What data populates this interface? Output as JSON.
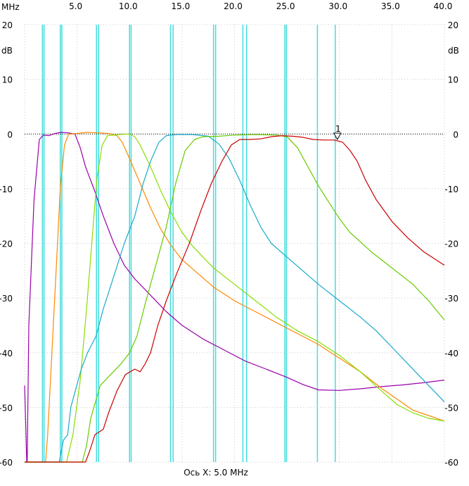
{
  "chart_data": {
    "type": "line",
    "x_unit": "MHz",
    "y_unit": "dB",
    "xlabel": "Ось X: 5.0 MHz",
    "xlim": [
      0,
      40
    ],
    "ylim": [
      -60,
      20
    ],
    "x_ticks_top": [
      {
        "value": 5,
        "label": "5.0"
      },
      {
        "value": 10,
        "label": "10.0"
      },
      {
        "value": 15,
        "label": "15.0"
      },
      {
        "value": 20,
        "label": "20.0"
      },
      {
        "value": 25,
        "label": "25.0"
      },
      {
        "value": 30,
        "label": "30.0"
      },
      {
        "value": 35,
        "label": "35.0"
      },
      {
        "value": 40,
        "label": "40.0"
      }
    ],
    "y_ticks": [
      {
        "value": 20,
        "label": "20"
      },
      {
        "value": 10,
        "label": "10"
      },
      {
        "value": 0,
        "label": "0"
      },
      {
        "value": -10,
        "label": "-10"
      },
      {
        "value": -20,
        "label": "-20"
      },
      {
        "value": -30,
        "label": "-30"
      },
      {
        "value": -40,
        "label": "-40"
      },
      {
        "value": -50,
        "label": "-50"
      },
      {
        "value": -60,
        "label": "-60"
      }
    ],
    "grid": true,
    "reference_line_db": 0,
    "marker": {
      "label": "1",
      "x": 29.8,
      "y": -1.0
    },
    "vertical_markers_mhz": [
      1.7,
      1.85,
      3.4,
      3.55,
      6.85,
      7.05,
      10.0,
      10.15,
      13.9,
      14.15,
      18.0,
      18.2,
      20.8,
      21.15,
      24.8,
      24.95,
      27.9,
      29.6
    ],
    "series": [
      {
        "color": "#9900aa",
        "points": [
          [
            0,
            -46
          ],
          [
            0.05,
            -49
          ],
          [
            0.2,
            -60
          ],
          [
            0.25,
            -60
          ],
          [
            0.4,
            -35
          ],
          [
            0.9,
            -12
          ],
          [
            1.4,
            -1
          ],
          [
            1.8,
            -0.2
          ],
          [
            2.3,
            -0.3
          ],
          [
            2.9,
            0.1
          ],
          [
            3.5,
            0.3
          ],
          [
            4.2,
            0.2
          ],
          [
            4.8,
            0
          ],
          [
            5.3,
            -2.5
          ],
          [
            5.8,
            -6
          ],
          [
            6.6,
            -10
          ],
          [
            7.5,
            -15
          ],
          [
            8.5,
            -20
          ],
          [
            9.5,
            -24
          ],
          [
            10.5,
            -26.5
          ],
          [
            12,
            -29.5
          ],
          [
            13.5,
            -32.5
          ],
          [
            15,
            -35
          ],
          [
            17,
            -37.5
          ],
          [
            19,
            -39.5
          ],
          [
            21,
            -41.5
          ],
          [
            23,
            -43
          ],
          [
            25,
            -44.5
          ],
          [
            26.5,
            -45.8
          ],
          [
            28,
            -46.8
          ],
          [
            30,
            -46.9
          ],
          [
            32,
            -46.6
          ],
          [
            34,
            -46.2
          ],
          [
            36,
            -45.9
          ],
          [
            38,
            -45.5
          ],
          [
            40,
            -45
          ]
        ]
      },
      {
        "color": "#ff8800",
        "points": [
          [
            0,
            -60
          ],
          [
            2.0,
            -60
          ],
          [
            2.2,
            -55
          ],
          [
            2.6,
            -40
          ],
          [
            3.0,
            -25
          ],
          [
            3.4,
            -10
          ],
          [
            3.8,
            -2
          ],
          [
            4.2,
            0
          ],
          [
            5,
            0.1
          ],
          [
            6,
            0.3
          ],
          [
            7,
            0.2
          ],
          [
            8,
            0.1
          ],
          [
            8.8,
            -0.3
          ],
          [
            9.3,
            -1.5
          ],
          [
            10,
            -4.5
          ],
          [
            11,
            -9
          ],
          [
            12,
            -13.5
          ],
          [
            13,
            -17.5
          ],
          [
            14,
            -20.5
          ],
          [
            15,
            -23
          ],
          [
            16.5,
            -25.5
          ],
          [
            18,
            -28
          ],
          [
            20,
            -30.5
          ],
          [
            22,
            -32.5
          ],
          [
            24,
            -34.5
          ],
          [
            26,
            -36.5
          ],
          [
            28,
            -38.5
          ],
          [
            30,
            -41
          ],
          [
            32,
            -43.5
          ],
          [
            34,
            -46.5
          ],
          [
            35.5,
            -48.5
          ],
          [
            37,
            -50.5
          ],
          [
            38.5,
            -51.5
          ],
          [
            40,
            -52.5
          ]
        ]
      },
      {
        "color": "#88dd00",
        "points": [
          [
            0,
            -60
          ],
          [
            4.0,
            -60
          ],
          [
            4.6,
            -55
          ],
          [
            5.3,
            -45
          ],
          [
            5.9,
            -32
          ],
          [
            6.4,
            -20
          ],
          [
            6.9,
            -8
          ],
          [
            7.4,
            -2
          ],
          [
            7.9,
            -0.3
          ],
          [
            9,
            -0.1
          ],
          [
            10,
            0
          ],
          [
            10.5,
            -0.5
          ],
          [
            11.0,
            -2
          ],
          [
            12,
            -6
          ],
          [
            13,
            -10.5
          ],
          [
            14,
            -14.5
          ],
          [
            15,
            -18
          ],
          [
            16,
            -20.5
          ],
          [
            17,
            -22.5
          ],
          [
            18,
            -24.5
          ],
          [
            20,
            -27.5
          ],
          [
            22,
            -30.5
          ],
          [
            24,
            -33.5
          ],
          [
            26,
            -36
          ],
          [
            28,
            -38
          ],
          [
            30,
            -40.5
          ],
          [
            32,
            -43.5
          ],
          [
            34,
            -47
          ],
          [
            35.5,
            -49.5
          ],
          [
            37,
            -51
          ],
          [
            38.5,
            -52
          ],
          [
            40,
            -52.5
          ]
        ]
      },
      {
        "color": "#1aaacc",
        "points": [
          [
            0,
            -60
          ],
          [
            3.3,
            -60
          ],
          [
            3.5,
            -58
          ],
          [
            3.7,
            -56
          ],
          [
            4.1,
            -55
          ],
          [
            4.4,
            -50
          ],
          [
            4.9,
            -46.5
          ],
          [
            5.4,
            -43
          ],
          [
            6.0,
            -40
          ],
          [
            6.8,
            -37
          ],
          [
            7.5,
            -32
          ],
          [
            8.5,
            -26
          ],
          [
            9.5,
            -20
          ],
          [
            10.5,
            -15
          ],
          [
            11.3,
            -9
          ],
          [
            12,
            -5
          ],
          [
            12.8,
            -1.5
          ],
          [
            13.5,
            -0.3
          ],
          [
            14.5,
            -0.1
          ],
          [
            16,
            -0.1
          ],
          [
            17.5,
            -0.4
          ],
          [
            18.5,
            -1.8
          ],
          [
            19.5,
            -4.5
          ],
          [
            20.5,
            -8.5
          ],
          [
            21.5,
            -13
          ],
          [
            22.5,
            -17
          ],
          [
            23.5,
            -20
          ],
          [
            25,
            -22.5
          ],
          [
            26.5,
            -25
          ],
          [
            28,
            -27.5
          ],
          [
            30,
            -30.5
          ],
          [
            32,
            -33.5
          ],
          [
            33.5,
            -36
          ],
          [
            35,
            -39
          ],
          [
            36.5,
            -42
          ],
          [
            38,
            -45
          ],
          [
            39,
            -47
          ],
          [
            40,
            -49
          ]
        ]
      },
      {
        "color": "#66cc00",
        "points": [
          [
            0,
            -60
          ],
          [
            5.5,
            -60
          ],
          [
            5.9,
            -57
          ],
          [
            6.3,
            -52
          ],
          [
            7.2,
            -46
          ],
          [
            8.2,
            -44
          ],
          [
            9.2,
            -42
          ],
          [
            10,
            -40
          ],
          [
            10.7,
            -37
          ],
          [
            11.5,
            -31
          ],
          [
            12.5,
            -24
          ],
          [
            13.5,
            -17
          ],
          [
            14.4,
            -9
          ],
          [
            15.3,
            -3
          ],
          [
            16.2,
            -1
          ],
          [
            17,
            -0.5
          ],
          [
            18.5,
            -0.4
          ],
          [
            20,
            -0.2
          ],
          [
            22,
            -0.1
          ],
          [
            24,
            -0.2
          ],
          [
            25,
            -0.5
          ],
          [
            26,
            -2.5
          ],
          [
            27,
            -6
          ],
          [
            28,
            -9.5
          ],
          [
            29,
            -12.5
          ],
          [
            30,
            -15.5
          ],
          [
            31,
            -18
          ],
          [
            33,
            -21.5
          ],
          [
            35,
            -24.5
          ],
          [
            37,
            -27.5
          ],
          [
            38.5,
            -30.5
          ],
          [
            40,
            -34
          ]
        ]
      },
      {
        "color": "#cc0000",
        "points": [
          [
            0,
            -60
          ],
          [
            5.8,
            -60
          ],
          [
            6.2,
            -58
          ],
          [
            6.7,
            -55
          ],
          [
            7.5,
            -54
          ],
          [
            8.0,
            -51
          ],
          [
            8.8,
            -47
          ],
          [
            9.6,
            -44
          ],
          [
            10.5,
            -43
          ],
          [
            11.0,
            -43.5
          ],
          [
            11.5,
            -42
          ],
          [
            12.0,
            -40
          ],
          [
            12.7,
            -35
          ],
          [
            13.5,
            -30.5
          ],
          [
            14.5,
            -25.5
          ],
          [
            15.7,
            -20
          ],
          [
            16.8,
            -14
          ],
          [
            17.8,
            -9
          ],
          [
            18.8,
            -5
          ],
          [
            19.7,
            -2
          ],
          [
            20.5,
            -1
          ],
          [
            21.5,
            -1
          ],
          [
            22.5,
            -0.9
          ],
          [
            23.5,
            -0.5
          ],
          [
            24.5,
            -0.3
          ],
          [
            25.5,
            -0.4
          ],
          [
            26.5,
            -0.6
          ],
          [
            27.5,
            -1.0
          ],
          [
            28.5,
            -1.1
          ],
          [
            29.5,
            -1.1
          ],
          [
            30.3,
            -1.5
          ],
          [
            31,
            -3
          ],
          [
            31.7,
            -5
          ],
          [
            32.5,
            -8.5
          ],
          [
            33.5,
            -12
          ],
          [
            35,
            -16
          ],
          [
            36.5,
            -19
          ],
          [
            38,
            -21.5
          ],
          [
            40,
            -24
          ]
        ]
      }
    ]
  }
}
